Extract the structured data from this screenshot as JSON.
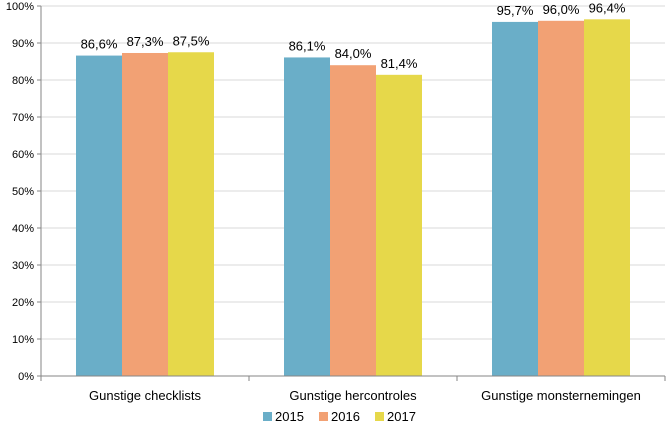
{
  "chart_data": {
    "type": "bar",
    "categories": [
      "Gunstige checklists",
      "Gunstige hercontroles",
      "Gunstige monsternemingen"
    ],
    "series": [
      {
        "name": "2015",
        "values": [
          86.6,
          86.1,
          95.7
        ],
        "labels": [
          "86,6%",
          "86,1%",
          "95,7%"
        ],
        "color": "#6aaec8"
      },
      {
        "name": "2016",
        "values": [
          87.3,
          84.0,
          96.0
        ],
        "labels": [
          "87,3%",
          "84,0%",
          "96,0%"
        ],
        "color": "#f2a174"
      },
      {
        "name": "2017",
        "values": [
          87.5,
          81.4,
          96.4
        ],
        "labels": [
          "87,5%",
          "81,4%",
          "96,4%"
        ],
        "color": "#e6d84a"
      }
    ],
    "y_ticks": [
      "0%",
      "10%",
      "20%",
      "30%",
      "40%",
      "50%",
      "60%",
      "70%",
      "80%",
      "90%",
      "100%"
    ],
    "ylim": [
      0,
      100
    ],
    "grid": true,
    "legend_position": "bottom",
    "title": "",
    "xlabel": "",
    "ylabel": ""
  }
}
